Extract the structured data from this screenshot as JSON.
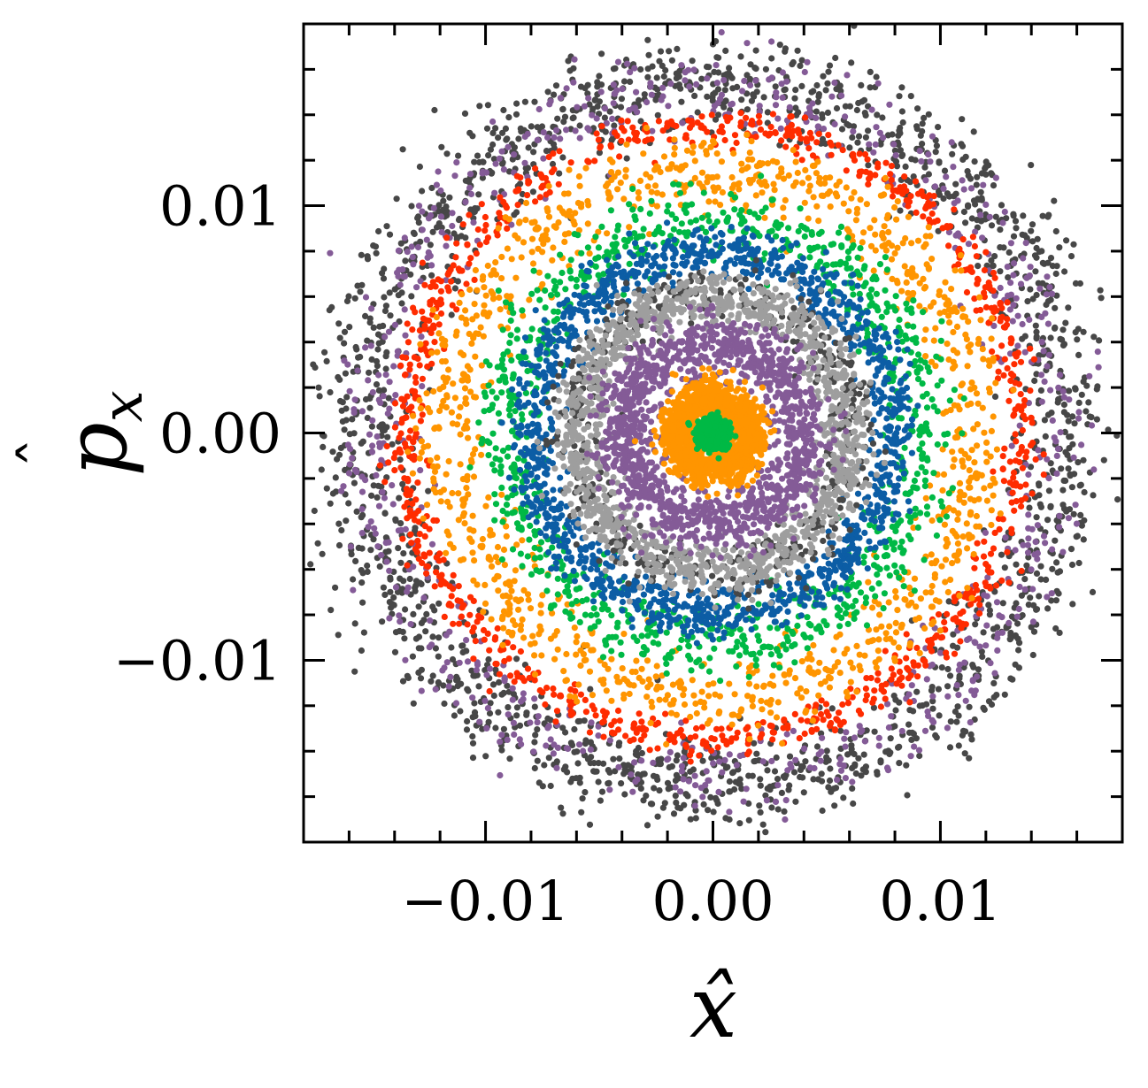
{
  "chart_data": {
    "type": "scatter",
    "title": "",
    "xlabel": "x̂",
    "ylabel": "p̂x",
    "ylabel_base": "p",
    "ylabel_sub": "x",
    "xlim": [
      -0.018,
      0.018
    ],
    "ylim": [
      -0.018,
      0.018
    ],
    "x_ticks": [
      -0.01,
      0.0,
      0.01
    ],
    "y_ticks": [
      -0.01,
      0.0,
      0.01
    ],
    "x_tick_labels": [
      "−0.01",
      "0.00",
      "0.01"
    ],
    "y_tick_labels": [
      "−0.01",
      "0.00",
      "0.01"
    ],
    "minor_tick_step": 0.002,
    "grid": false,
    "legend": "none",
    "point_generation_seed": 12345,
    "series": [
      {
        "color": "#474747",
        "ring_radius": 0.0155,
        "ring_width": 0.0018,
        "count": 1800
      },
      {
        "color": "#845b97",
        "ring_radius": 0.015,
        "ring_width": 0.0016,
        "count": 700
      },
      {
        "color": "#ff2c00",
        "ring_radius": 0.0135,
        "ring_width": 0.0007,
        "count": 900
      },
      {
        "color": "#ff9500",
        "ring_radius": 0.0115,
        "ring_width": 0.0014,
        "count": 1100
      },
      {
        "color": "#00b945",
        "ring_radius": 0.0092,
        "ring_width": 0.0013,
        "count": 1000
      },
      {
        "color": "#0c5da5",
        "ring_radius": 0.008,
        "ring_width": 0.0009,
        "count": 1300
      },
      {
        "color": "#474747",
        "ring_radius": 0.0062,
        "ring_width": 0.001,
        "count": 500
      },
      {
        "color": "#9e9e9e",
        "ring_radius": 0.006,
        "ring_width": 0.001,
        "count": 1300
      },
      {
        "color": "#845b97",
        "ring_radius": 0.004,
        "ring_width": 0.0011,
        "count": 1300
      },
      {
        "color": "#ff9500",
        "ring_radius": 0.0016,
        "ring_width": 0.0008,
        "count": 1200
      },
      {
        "color": "#00b945",
        "ring_radius": 0.0004,
        "ring_width": 0.0004,
        "count": 500
      }
    ]
  }
}
